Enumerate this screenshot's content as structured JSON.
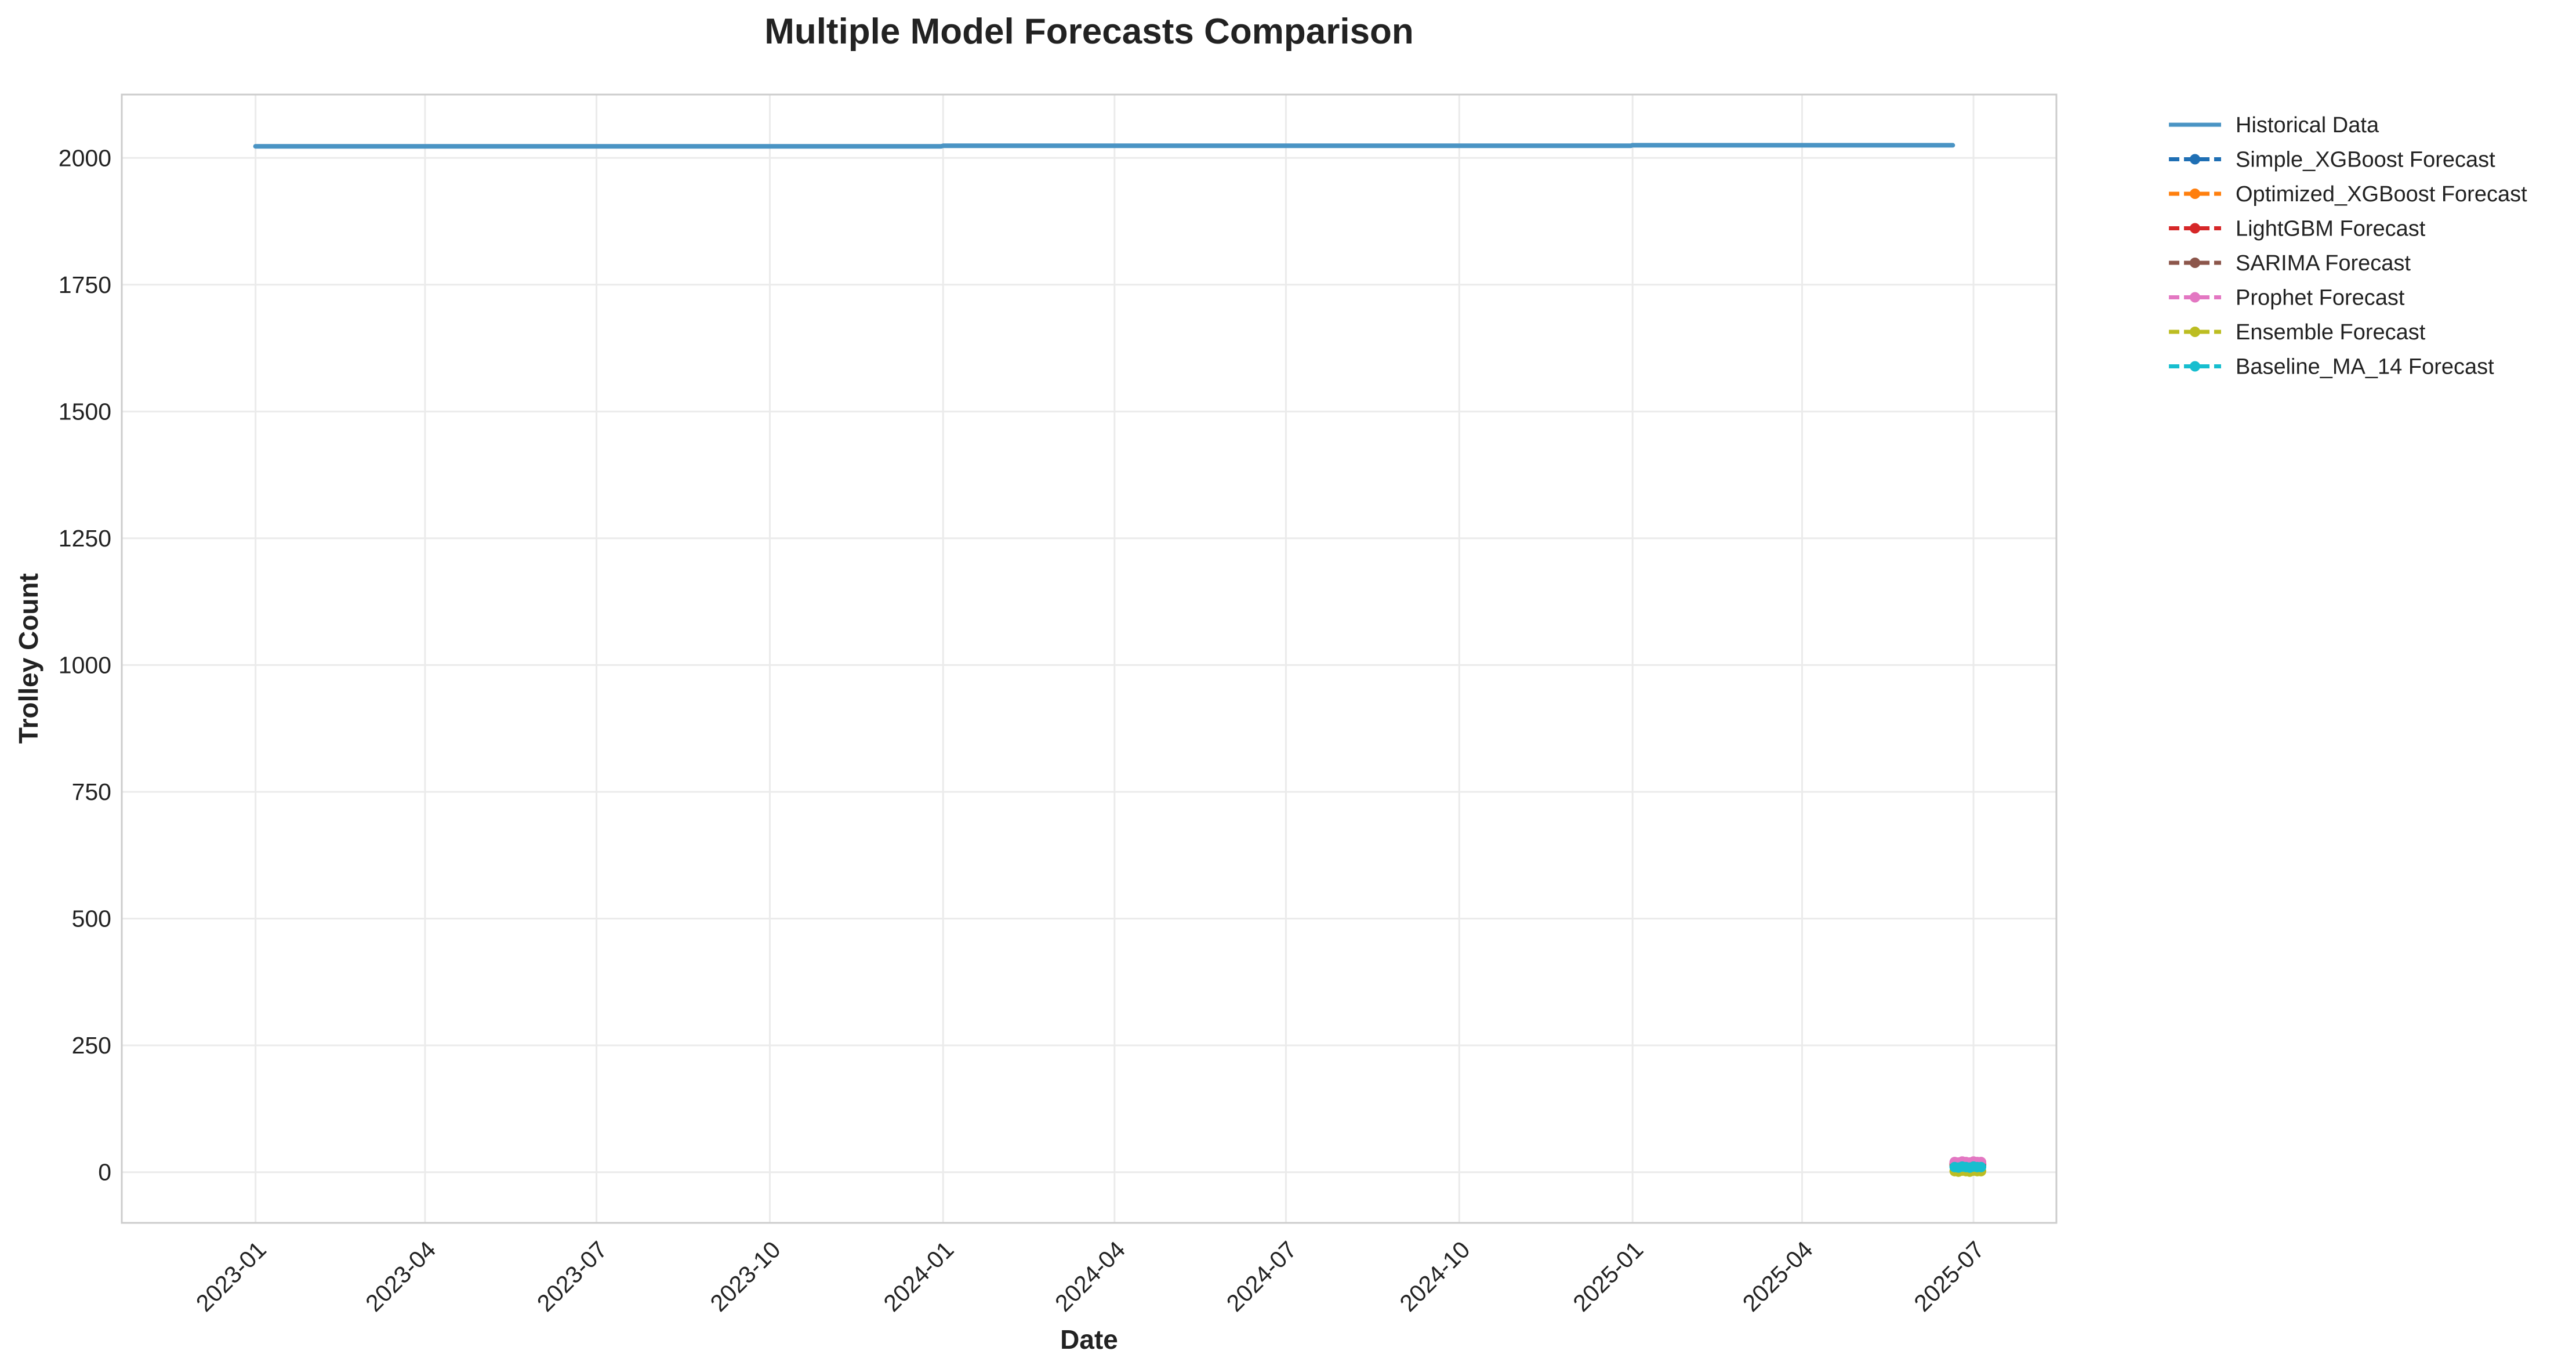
{
  "chart_data": {
    "type": "line",
    "title": "Multiple Model Forecasts Comparison",
    "xlabel": "Date",
    "ylabel": "Trolley Count",
    "xlim": [
      "2022-10-22",
      "2025-08-14"
    ],
    "ylim": [
      -100,
      2125
    ],
    "x_ticks": [
      "2023-01",
      "2023-04",
      "2023-07",
      "2023-10",
      "2024-01",
      "2024-04",
      "2024-07",
      "2024-10",
      "2025-01",
      "2025-04",
      "2025-07"
    ],
    "y_ticks": [
      0,
      250,
      500,
      750,
      1000,
      1250,
      1500,
      1750,
      2000
    ],
    "grid": true,
    "legend_position": "outside-top-right",
    "series": [
      {
        "name": "Historical Data",
        "color": "#4a94c4",
        "style": "solid",
        "markers": false,
        "x": [
          "2023-01-01",
          "2023-12-31",
          "2024-01-01",
          "2024-12-31",
          "2025-01-01",
          "2025-06-20"
        ],
        "values": [
          2023,
          2023,
          2024,
          2024,
          2025,
          2025
        ]
      },
      {
        "name": "Simple_XGBoost Forecast",
        "color": "#1f6fb4",
        "style": "dashed",
        "markers": true,
        "x": [
          "2025-06-21",
          "2025-06-23",
          "2025-06-25",
          "2025-06-27",
          "2025-06-29",
          "2025-07-01",
          "2025-07-03",
          "2025-07-05"
        ],
        "values": [
          18,
          17,
          19,
          18,
          17,
          19,
          18,
          18
        ]
      },
      {
        "name": "Optimized_XGBoost Forecast",
        "color": "#ff7f0e",
        "style": "dashed",
        "markers": true,
        "x": [
          "2025-06-21",
          "2025-06-23",
          "2025-06-25",
          "2025-06-27",
          "2025-06-29",
          "2025-07-01",
          "2025-07-03",
          "2025-07-05"
        ],
        "values": [
          14,
          13,
          15,
          14,
          13,
          15,
          14,
          14
        ]
      },
      {
        "name": "LightGBM Forecast",
        "color": "#d62728",
        "style": "dashed",
        "markers": true,
        "x": [
          "2025-06-21",
          "2025-06-23",
          "2025-06-25",
          "2025-06-27",
          "2025-06-29",
          "2025-07-01",
          "2025-07-03",
          "2025-07-05"
        ],
        "values": [
          16,
          15,
          17,
          16,
          15,
          17,
          16,
          16
        ]
      },
      {
        "name": "SARIMA Forecast",
        "color": "#8c564b",
        "style": "dashed",
        "markers": true,
        "x": [
          "2025-06-21",
          "2025-06-23",
          "2025-06-25",
          "2025-06-27",
          "2025-06-29",
          "2025-07-01",
          "2025-07-03",
          "2025-07-05"
        ],
        "values": [
          12,
          11,
          12,
          12,
          11,
          12,
          12,
          12
        ]
      },
      {
        "name": "Prophet Forecast",
        "color": "#e377c2",
        "style": "dashed",
        "markers": true,
        "x": [
          "2025-06-21",
          "2025-06-23",
          "2025-06-25",
          "2025-06-27",
          "2025-06-29",
          "2025-07-01",
          "2025-07-03",
          "2025-07-05"
        ],
        "values": [
          20,
          19,
          21,
          20,
          19,
          21,
          20,
          20
        ]
      },
      {
        "name": "Ensemble Forecast",
        "color": "#bcbd22",
        "style": "dashed",
        "markers": true,
        "x": [
          "2025-06-21",
          "2025-06-23",
          "2025-06-25",
          "2025-06-27",
          "2025-06-29",
          "2025-07-01",
          "2025-07-03",
          "2025-07-05"
        ],
        "values": [
          2,
          1,
          3,
          2,
          1,
          3,
          2,
          2
        ]
      },
      {
        "name": "Baseline_MA_14 Forecast",
        "color": "#17becf",
        "style": "dashed",
        "markers": true,
        "x": [
          "2025-06-21",
          "2025-06-23",
          "2025-06-25",
          "2025-06-27",
          "2025-06-29",
          "2025-07-01",
          "2025-07-03",
          "2025-07-05"
        ],
        "values": [
          10,
          9,
          11,
          10,
          9,
          11,
          10,
          10
        ]
      }
    ]
  }
}
